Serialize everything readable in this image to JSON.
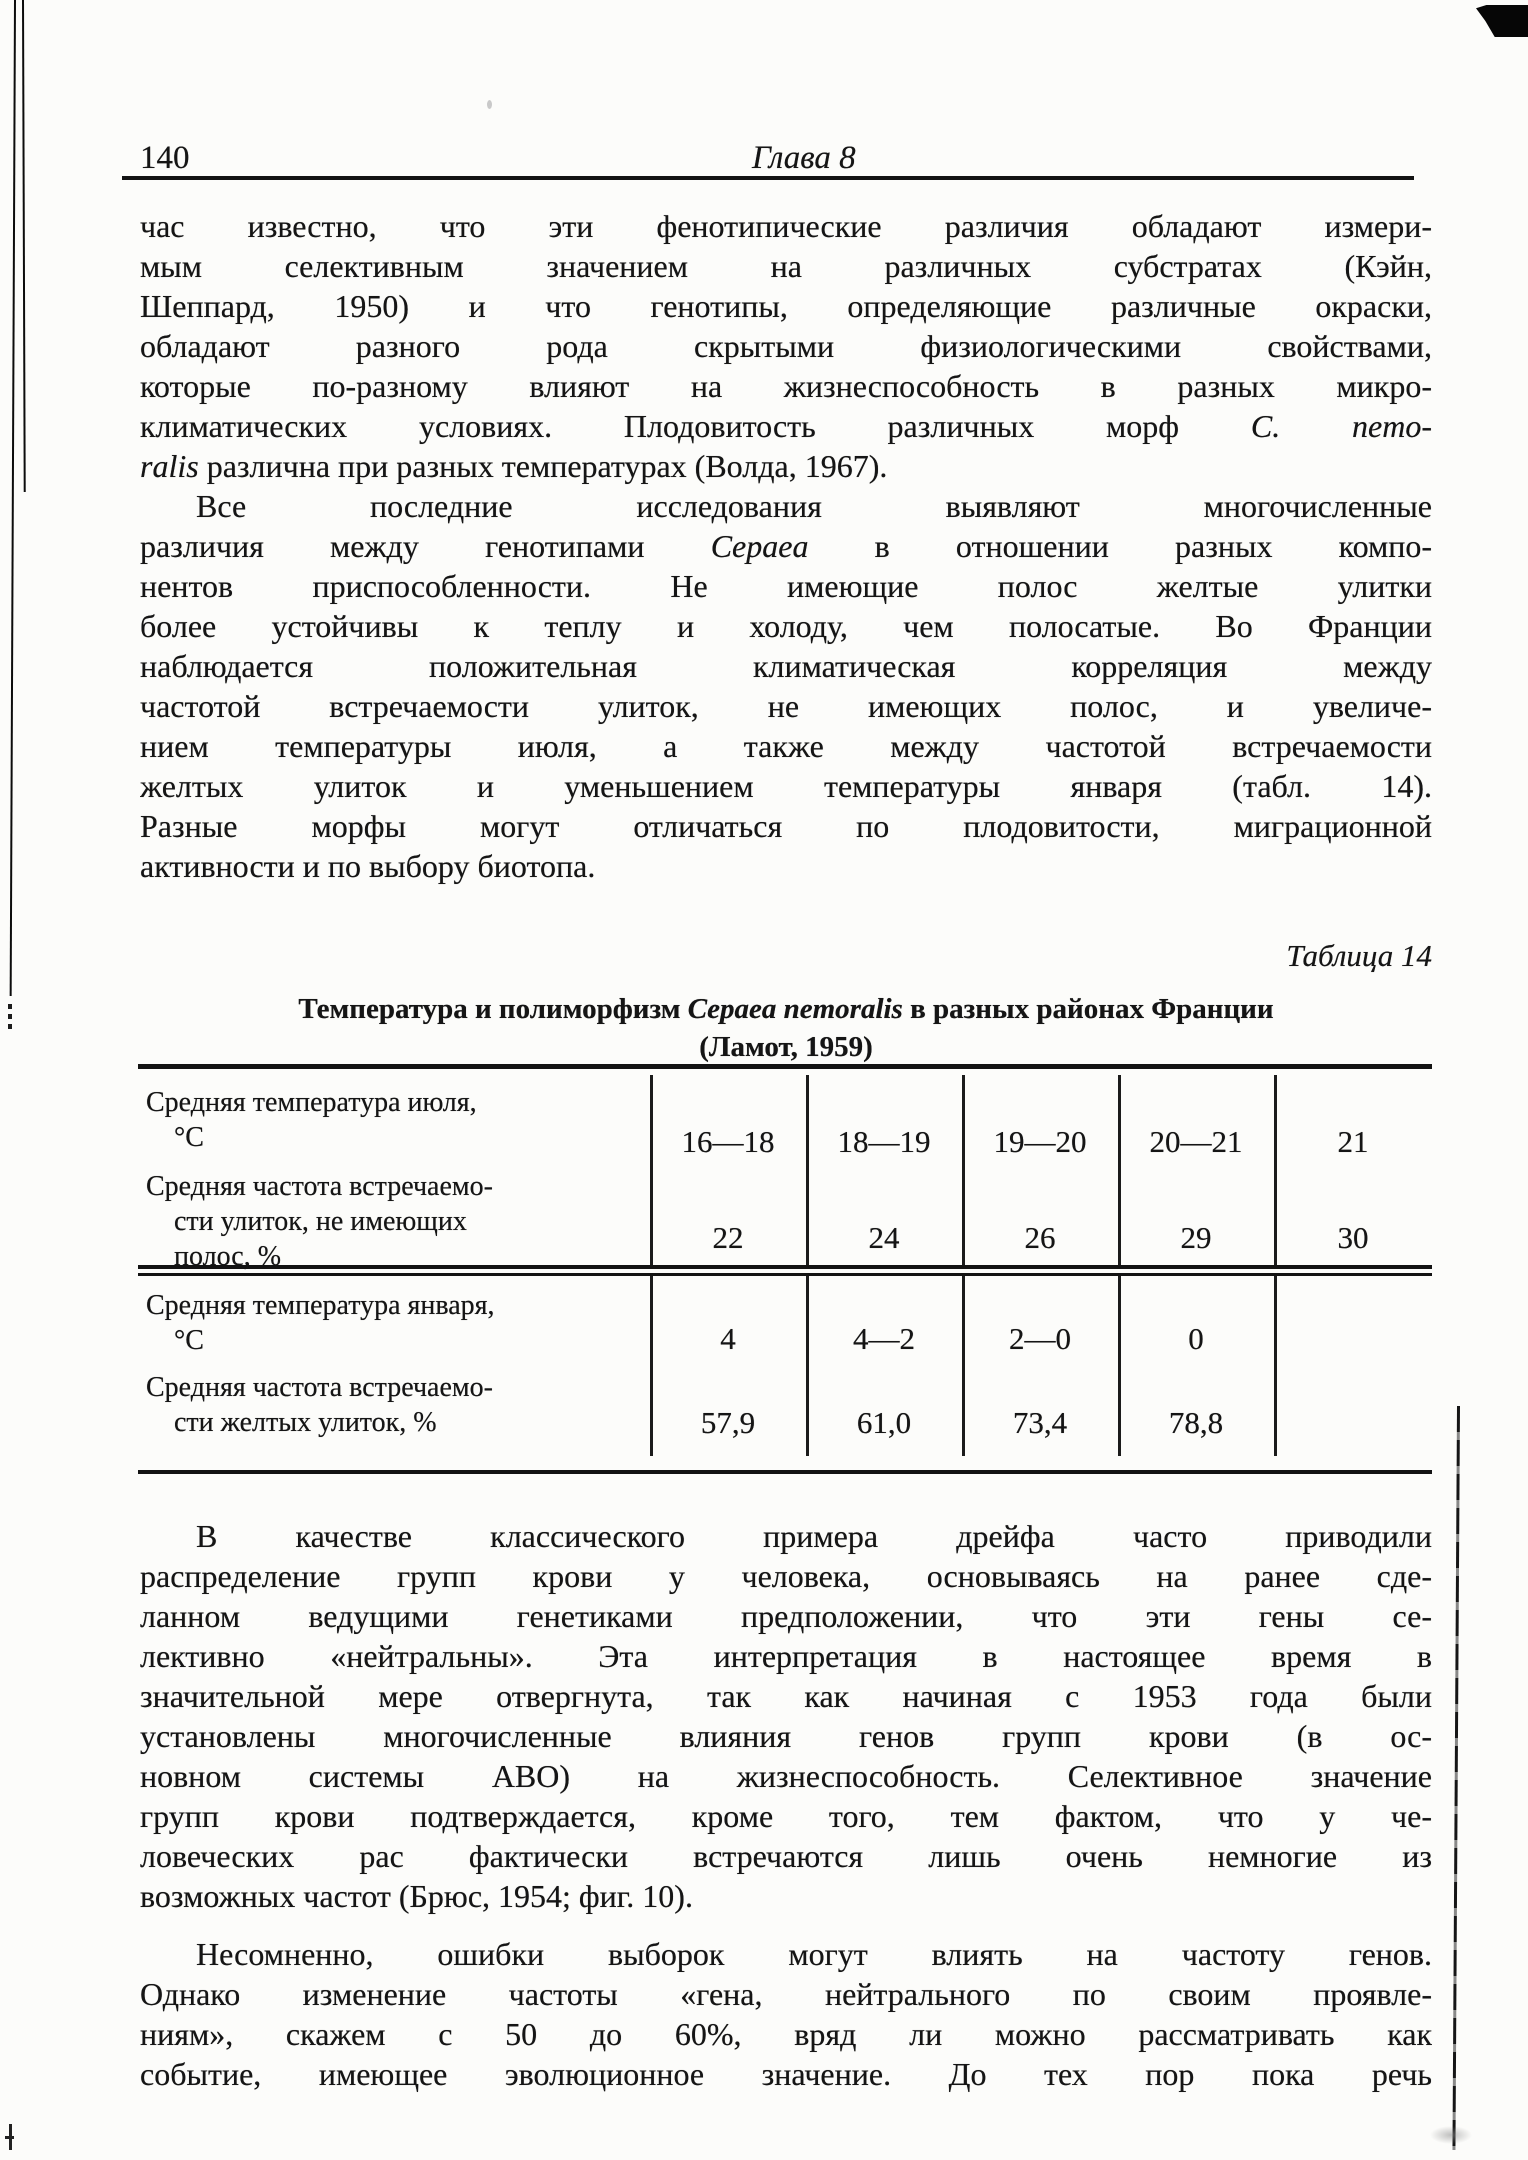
{
  "header": {
    "page_number": "140",
    "chapter_title": "Глава 8"
  },
  "p1": {
    "l1": "час известно, что эти фенотипические различия обладают измери-",
    "l2": "мым селективным значением на различных субстратах (Кэйн,",
    "l3": "Шеппард, 1950) и что генотипы, определяющие различные окраски,",
    "l4": "обладают разного рода скрытыми физиологическими свойствами,",
    "l5": "которые по-разному влияют на жизнеспособность в разных микро-",
    "l6a": "климатических условиях. Плодовитость различных морф ",
    "l6b": "C. nemo-",
    "l7a": "ralis",
    "l7b": " различна при разных температурах (Волда, 1967)."
  },
  "p2": {
    "l1": "Все последние исследования выявляют многочисленные",
    "l2a": "различия между генотипами ",
    "l2b": "Cepaea",
    "l2c": " в отношении разных компо-",
    "l3": "нентов приспособленности. Не имеющие полос желтые улитки",
    "l4": "более устойчивы к теплу и холоду, чем полосатые. Во Франции",
    "l5": "наблюдается положительная климатическая корреляция между",
    "l6": "частотой встречаемости улиток, не имеющих полос, и увеличе-",
    "l7": "нием температуры июля, а также между частотой встречаемости",
    "l8": "желтых улиток и уменьшением температуры января (табл. 14).",
    "l9": "Разные морфы могут отличаться по плодовитости, миграционной",
    "l10": "активности и по выбору биотопа."
  },
  "table": {
    "caption": "Таблица 14",
    "title_prefix": "Температура и полиморфизм ",
    "title_species": "Cepaea nemoralis",
    "title_suffix": " в разных районах Франции",
    "title_line2": "(Ламот, 1959)",
    "row1": {
      "label_l1": "Средняя температура июля,",
      "label_l2": "°С",
      "v1": "16—18",
      "v2": "18—19",
      "v3": "19—20",
      "v4": "20—21",
      "v5": "21"
    },
    "row2": {
      "label_l1": "Средняя частота встречаемо-",
      "label_l2": "сти улиток, не имеющих",
      "label_l3": "полос, %",
      "v1": "22",
      "v2": "24",
      "v3": "26",
      "v4": "29",
      "v5": "30"
    },
    "row3": {
      "label_l1": "Средняя температура января,",
      "label_l2": "°С",
      "v1": "4",
      "v2": "4—2",
      "v3": "2—0",
      "v4": "0",
      "v5": ""
    },
    "row4": {
      "label_l1": "Средняя частота встречаемо-",
      "label_l2": "сти желтых улиток, %",
      "v1": "57,9",
      "v2": "61,0",
      "v3": "73,4",
      "v4": "78,8",
      "v5": ""
    }
  },
  "p3": {
    "l1": "В качестве классического примера дрейфа часто приводили",
    "l2": "распределение групп крови у человека, основываясь на ранее сде-",
    "l3": "ланном ведущими генетиками предположении, что эти гены се-",
    "l4": "лективно «нейтральны». Эта интерпретация в настоящее время в",
    "l5": "значительной мере отвергнута, так как начиная с 1953 года были",
    "l6": "установлены многочисленные влияния генов групп крови (в ос-",
    "l7": "новном системы АВО) на жизнеспособность. Селективное значение",
    "l8": "групп крови подтверждается, кроме того, тем фактом, что у че-",
    "l9": "ловеческих рас фактически встречаются лишь очень немногие из",
    "l10": "возможных частот (Брюс, 1954; фиг. 10)."
  },
  "p4": {
    "l1": "Несомненно, ошибки выборок могут влиять на частоту генов.",
    "l2": "Однако изменение частоты «гена, нейтрального по своим проявле-",
    "l3": "ниям», скажем с 50 до 60%, вряд ли можно рассматривать как",
    "l4": "событие, имеющее эволюционное значение. До тех пор пока речь"
  }
}
